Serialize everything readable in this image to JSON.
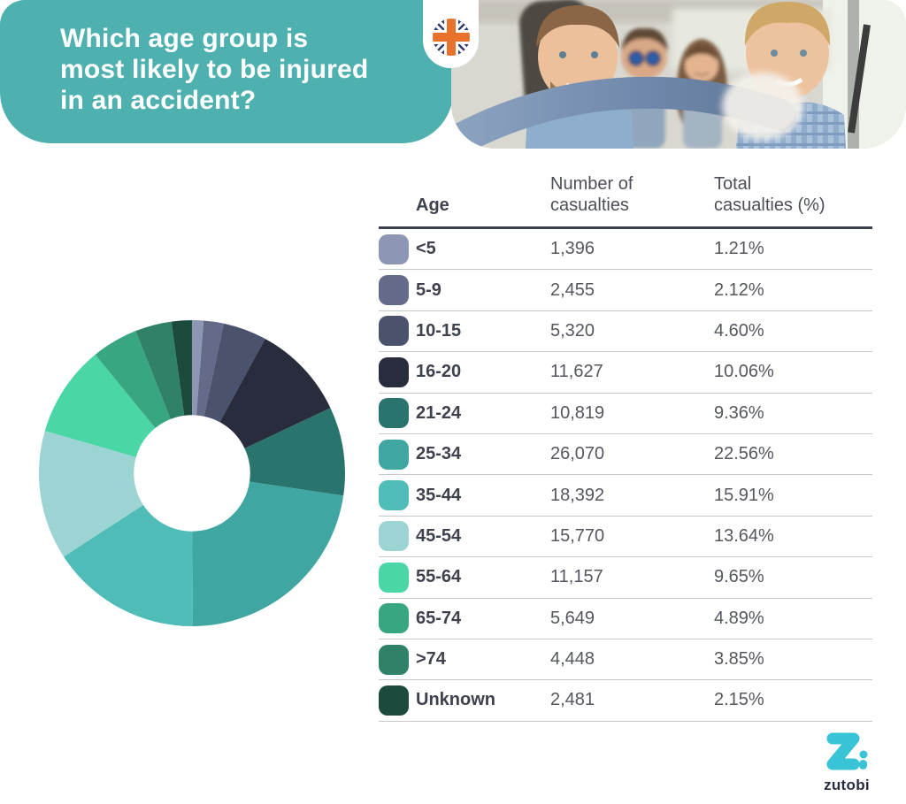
{
  "header": {
    "title_lines": [
      "Which age group is",
      "most likely to be injured",
      "in an accident?"
    ],
    "bg_color": "#4FB1AF",
    "text_color": "#FFFFFF"
  },
  "flag": {
    "name": "uk-flag-roundel",
    "field_color": "#2F3A6E",
    "cross_color": "#E8722C"
  },
  "photo": {
    "alt": "young-people-in-car-photo"
  },
  "chart_data": {
    "type": "pie",
    "donut": true,
    "start_angle_deg": 0,
    "direction": "clockwise",
    "inner_radius_ratio": 0.38,
    "categories": [
      "<5",
      "5-9",
      "10-15",
      "16-20",
      "21-24",
      "25-34",
      "35-44",
      "45-54",
      "55-64",
      "65-74",
      ">74",
      "Unknown"
    ],
    "values": [
      1.21,
      2.12,
      4.6,
      10.06,
      9.36,
      22.56,
      15.91,
      13.64,
      9.65,
      4.89,
      3.85,
      2.15
    ],
    "counts": [
      1396,
      2455,
      5320,
      11627,
      10819,
      26070,
      18392,
      15770,
      11157,
      5649,
      4448,
      2481
    ],
    "colors": [
      "#8D97B4",
      "#636B88",
      "#4B526C",
      "#282C3C",
      "#2A746E",
      "#3FA6A1",
      "#4FBCB7",
      "#9CD4D3",
      "#4BD6A6",
      "#39A682",
      "#2F8168",
      "#1C4B3D"
    ]
  },
  "table": {
    "columns": [
      "Age",
      "Number of\ncasualties",
      "Total\ncasualties (%)"
    ],
    "rows": [
      {
        "age": "<5",
        "count": "1,396",
        "pct": "1.21%",
        "color": "#8D97B4"
      },
      {
        "age": "5-9",
        "count": "2,455",
        "pct": "2.12%",
        "color": "#636B88"
      },
      {
        "age": "10-15",
        "count": "5,320",
        "pct": "4.60%",
        "color": "#4B526C"
      },
      {
        "age": "16-20",
        "count": "11,627",
        "pct": "10.06%",
        "color": "#282C3C"
      },
      {
        "age": "21-24",
        "count": "10,819",
        "pct": "9.36%",
        "color": "#2A746E"
      },
      {
        "age": "25-34",
        "count": "26,070",
        "pct": "22.56%",
        "color": "#3FA6A1"
      },
      {
        "age": "35-44",
        "count": "18,392",
        "pct": "15.91%",
        "color": "#4FBCB7"
      },
      {
        "age": "45-54",
        "count": "15,770",
        "pct": "13.64%",
        "color": "#9CD4D3"
      },
      {
        "age": "55-64",
        "count": "11,157",
        "pct": "9.65%",
        "color": "#4BD6A6"
      },
      {
        "age": "65-74",
        "count": "5,649",
        "pct": "4.89%",
        "color": "#39A682"
      },
      {
        "age": ">74",
        "count": "4,448",
        "pct": "3.85%",
        "color": "#2F8168"
      },
      {
        "age": "Unknown",
        "count": "2,481",
        "pct": "2.15%",
        "color": "#1C4B3D"
      }
    ]
  },
  "brand": {
    "text": "zutobi",
    "logo_color": "#38C3D6",
    "text_color": "#272C3E"
  }
}
